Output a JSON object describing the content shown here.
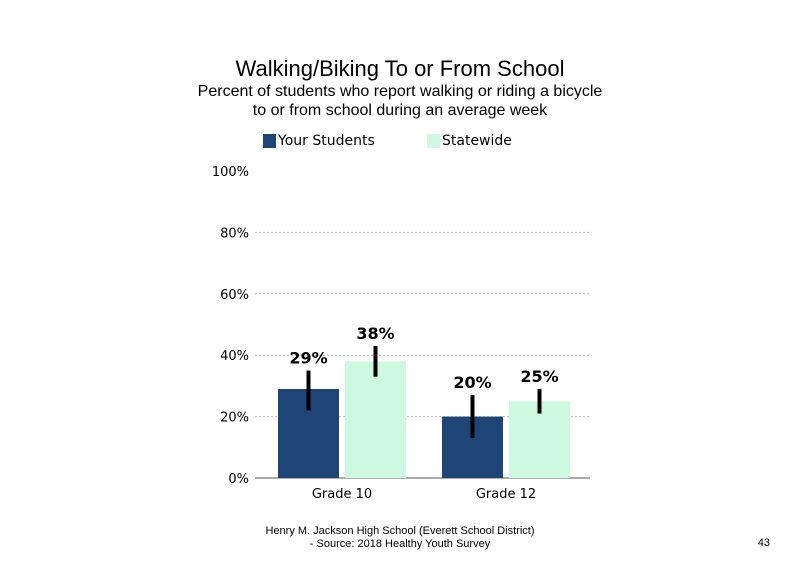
{
  "colors": {
    "your_students": "#1f4576",
    "statewide": "#ccf9df",
    "error_bar": "#000000",
    "grid": "#b8b8b8"
  },
  "footer": {
    "line1": "Henry M. Jackson High School (Everett School District)",
    "line2": "- Source: 2018 Healthy Youth Survey"
  },
  "page_number": "43",
  "chart_data": {
    "type": "bar",
    "title": "Walking/Biking  To or From School",
    "subtitle": [
      "Percent of students who report walking or riding a bicycle",
      "to or from school during an average week"
    ],
    "categories": [
      "Grade 10",
      "Grade 12"
    ],
    "series": [
      {
        "name": "Your Students",
        "values": [
          29,
          20
        ],
        "labels": [
          "29%",
          "20%"
        ],
        "error_low": [
          22,
          13
        ],
        "error_high": [
          35,
          27
        ]
      },
      {
        "name": "Statewide",
        "values": [
          38,
          25
        ],
        "labels": [
          "38%",
          "25%"
        ],
        "error_low": [
          33,
          21
        ],
        "error_high": [
          43,
          29
        ]
      }
    ],
    "ylim": [
      0,
      100
    ],
    "yticks": [
      "0%",
      "20%",
      "40%",
      "60%",
      "80%",
      "100%"
    ],
    "ytick_values": [
      0,
      20,
      40,
      60,
      80,
      100
    ],
    "grid": true,
    "legend_position": "top"
  }
}
